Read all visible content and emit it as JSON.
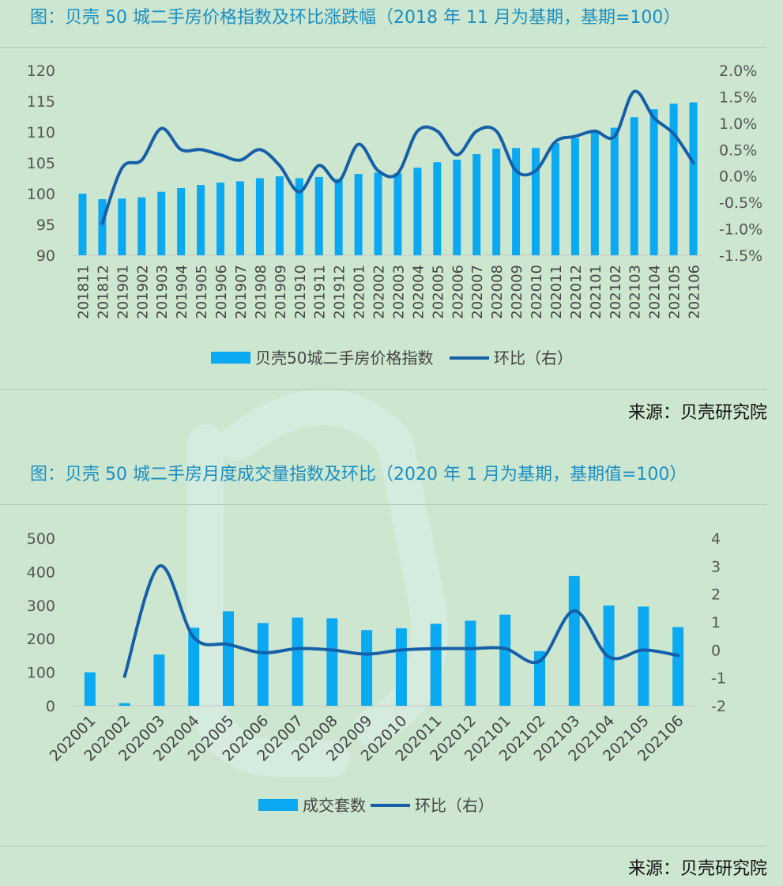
{
  "chart_data": [
    {
      "type": "bar",
      "title": "图：贝壳 50 城二手房价格指数及环比涨跌幅（2018 年 11 月为基期，基期=100）",
      "source": "来源：贝壳研究院",
      "categories": [
        "201811",
        "201812",
        "201901",
        "201902",
        "201903",
        "201904",
        "201905",
        "201906",
        "201907",
        "201908",
        "201909",
        "201910",
        "201911",
        "201912",
        "202001",
        "202002",
        "202003",
        "202004",
        "202005",
        "202006",
        "202007",
        "202008",
        "202009",
        "202010",
        "202011",
        "202012",
        "202101",
        "202102",
        "202103",
        "202104",
        "202105",
        "202106"
      ],
      "series": [
        {
          "name": "贝壳50城二手房价格指数",
          "type": "bar",
          "axis": "left",
          "values": [
            100,
            99.1,
            99.2,
            99.4,
            100.3,
            100.9,
            101.4,
            101.8,
            102.0,
            102.5,
            102.8,
            102.5,
            102.7,
            102.4,
            103.2,
            103.4,
            103.3,
            104.2,
            105.1,
            105.5,
            106.4,
            107.3,
            107.4,
            107.4,
            108.2,
            109.0,
            109.9,
            110.7,
            112.4,
            113.7,
            114.6,
            114.8
          ]
        },
        {
          "name": "环比（右）",
          "type": "line",
          "axis": "right",
          "values": [
            null,
            -0.9,
            0.15,
            0.3,
            0.9,
            0.5,
            0.5,
            0.4,
            0.3,
            0.5,
            0.2,
            -0.3,
            0.2,
            -0.1,
            0.6,
            0.1,
            0.05,
            0.85,
            0.85,
            0.4,
            0.85,
            0.85,
            0.1,
            0.1,
            0.65,
            0.75,
            0.85,
            0.75,
            1.6,
            1.1,
            0.8,
            0.25
          ]
        }
      ],
      "ylim": [
        90,
        120
      ],
      "yticks": [
        "120",
        "115",
        "110",
        "105",
        "100",
        "95",
        "90"
      ],
      "y2lim": [
        -1.5,
        2.0
      ],
      "y2ticks": [
        "2.0%",
        "1.5%",
        "1.0%",
        "0.5%",
        "0.0%",
        "-0.5%",
        "-1.0%",
        "-1.5%"
      ],
      "legend": "bottom",
      "colors": {
        "bar": "#0aa9f1",
        "line": "#1560a8"
      }
    },
    {
      "type": "bar",
      "title": "图：贝壳 50 城二手房月度成交量指数及环比（2020 年 1 月为基期，基期值=100）",
      "source": "来源：贝壳研究院",
      "categories": [
        "202001",
        "202002",
        "202003",
        "202004",
        "202005",
        "202006",
        "202007",
        "202008",
        "202009",
        "202010",
        "202011",
        "202012",
        "202101",
        "202102",
        "202103",
        "202104",
        "202105",
        "202106"
      ],
      "series": [
        {
          "name": "成交套数",
          "type": "bar",
          "axis": "left",
          "values": [
            100,
            8,
            153,
            233,
            282,
            247,
            263,
            261,
            226,
            231,
            245,
            254,
            272,
            163,
            387,
            299,
            296,
            235
          ]
        },
        {
          "name": "环比（右）",
          "type": "line",
          "axis": "right",
          "values": [
            null,
            -0.95,
            3.0,
            0.45,
            0.2,
            -0.1,
            0.05,
            0.0,
            -0.15,
            0.0,
            0.05,
            0.05,
            0.05,
            -0.4,
            1.4,
            -0.25,
            0.0,
            -0.2
          ]
        }
      ],
      "ylim": [
        0,
        500
      ],
      "yticks": [
        "500",
        "400",
        "300",
        "200",
        "100",
        "0"
      ],
      "y2lim": [
        -2,
        4
      ],
      "y2ticks": [
        "4",
        "3",
        "2",
        "1",
        "0",
        "-1",
        "-2"
      ],
      "legend": "bottom",
      "colors": {
        "bar": "#0aa9f1",
        "line": "#1560a8"
      }
    }
  ]
}
